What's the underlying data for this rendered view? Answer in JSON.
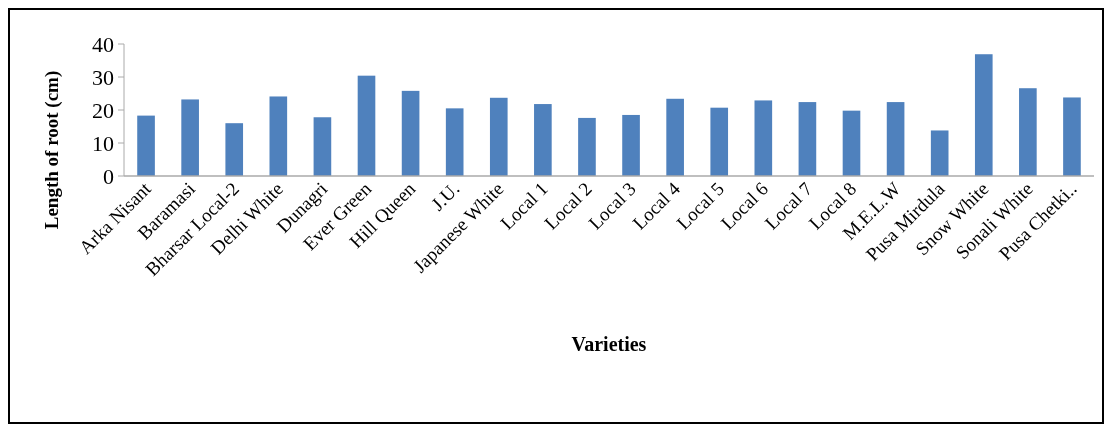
{
  "chart_data": {
    "type": "bar",
    "xlabel": "Varieties",
    "ylabel": "Length of root (cm)",
    "categories": [
      "Arka Nisant",
      "Baramasi",
      "Bharsar Local-2",
      "Delhi White",
      "Dunagri",
      "Ever Green",
      "Hill Queen",
      "J.U.",
      "Japanese White",
      "Local 1",
      "Local 2",
      "Local 3",
      "Local 4",
      "Local 5",
      "Local 6",
      "Local 7",
      "Local 8",
      "M.E.L.W",
      "Pusa Mirdula",
      "Snow White",
      "Sonali White",
      "Pusa Chetki.."
    ],
    "values": [
      18.3,
      23.2,
      16.0,
      24.1,
      17.8,
      30.4,
      25.8,
      20.5,
      23.7,
      21.8,
      17.6,
      18.5,
      23.4,
      20.7,
      22.9,
      22.4,
      19.8,
      22.4,
      13.8,
      36.9,
      26.6,
      23.8
    ],
    "color": "#4f81bd",
    "ylim": [
      0,
      40
    ],
    "yticks": [
      0,
      10,
      20,
      30,
      40
    ],
    "grid": false
  }
}
